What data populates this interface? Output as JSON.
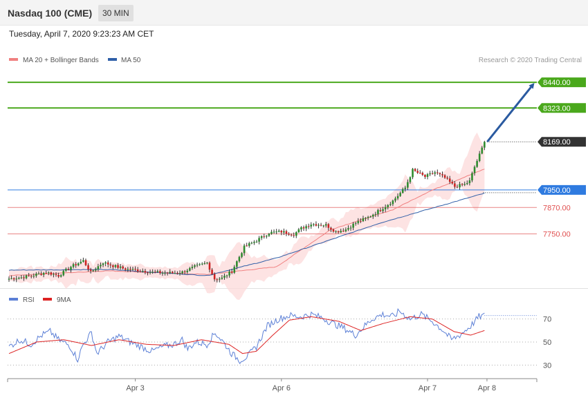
{
  "header": {
    "title": "Nasdaq 100 (CME)",
    "timeframe": "30 MIN",
    "datetime": "Tuesday, April 7, 2020 9:23:23 AM CET"
  },
  "legend": {
    "ma20_label": "MA 20 + Bollinger Bands",
    "ma20_color": "#f08080",
    "ma50_label": "MA 50",
    "ma50_color": "#2f5fa8",
    "copyright": "Research © 2020 Trading Central"
  },
  "rsi_legend": {
    "rsi_label": "RSI",
    "rsi_color": "#5b7fd6",
    "ma9_label": "9MA",
    "ma9_color": "#dd2222"
  },
  "chart_data": [
    {
      "type": "candlestick",
      "x_labels": [
        "Apr 3",
        "Apr 6",
        "Apr 7",
        "Apr 8"
      ],
      "ylim": [
        7525,
        8500
      ],
      "levels": [
        {
          "value": 8440.0,
          "label": "8440.00",
          "role": "target",
          "color": "#4aa81c"
        },
        {
          "value": 8323.0,
          "label": "8323.00",
          "role": "target",
          "color": "#4aa81c"
        },
        {
          "value": 8169.0,
          "label": "8169.00",
          "role": "last price",
          "color": "#333333"
        },
        {
          "value": 7950.0,
          "label": "7950.00",
          "role": "pivot",
          "color": "#2f7be0"
        },
        {
          "value": 7870.0,
          "label": "7870.00",
          "role": "support",
          "color": "#e05050"
        },
        {
          "value": 7750.0,
          "label": "7750.00",
          "role": "support",
          "color": "#e05050"
        }
      ],
      "arrow": {
        "from": 8169,
        "to": 8440,
        "direction": "up",
        "color": "#2a5aa0"
      },
      "anchors": [
        [
          0,
          7546
        ],
        [
          5,
          7552
        ],
        [
          10,
          7562
        ],
        [
          15,
          7575
        ],
        [
          20,
          7560
        ],
        [
          25,
          7600
        ],
        [
          30,
          7628
        ],
        [
          33,
          7575
        ],
        [
          38,
          7620
        ],
        [
          42,
          7605
        ],
        [
          47,
          7590
        ],
        [
          52,
          7585
        ],
        [
          58,
          7575
        ],
        [
          66,
          7572
        ],
        [
          70,
          7576
        ],
        [
          75,
          7600
        ],
        [
          80,
          7618
        ],
        [
          83,
          7545
        ],
        [
          86,
          7548
        ],
        [
          90,
          7580
        ],
        [
          95,
          7690
        ],
        [
          100,
          7720
        ],
        [
          105,
          7755
        ],
        [
          110,
          7760
        ],
        [
          115,
          7748
        ],
        [
          118,
          7775
        ],
        [
          122,
          7795
        ],
        [
          128,
          7790
        ],
        [
          132,
          7760
        ],
        [
          136,
          7770
        ],
        [
          140,
          7800
        ],
        [
          145,
          7825
        ],
        [
          150,
          7860
        ],
        [
          155,
          7900
        ],
        [
          160,
          7960
        ],
        [
          163,
          8040
        ],
        [
          168,
          8010
        ],
        [
          172,
          8030
        ],
        [
          176,
          8005
        ],
        [
          180,
          7965
        ],
        [
          184,
          7975
        ],
        [
          186,
          7990
        ],
        [
          188,
          8055
        ],
        [
          190,
          8110
        ],
        [
          192,
          8169
        ]
      ],
      "ma50_anchors": [
        [
          0,
          7585
        ],
        [
          40,
          7588
        ],
        [
          80,
          7560
        ],
        [
          108,
          7640
        ],
        [
          150,
          7800
        ],
        [
          192,
          7935
        ]
      ],
      "ma20_anchors": [
        [
          0,
          7560
        ],
        [
          40,
          7582
        ],
        [
          80,
          7565
        ],
        [
          108,
          7600
        ],
        [
          130,
          7770
        ],
        [
          155,
          7860
        ],
        [
          170,
          7945
        ],
        [
          192,
          8045
        ]
      ]
    },
    {
      "type": "line",
      "name": "RSI",
      "ylim": [
        20,
        80
      ],
      "y_ticks": [
        70,
        50,
        30
      ],
      "rsi_anchors": [
        [
          0,
          46
        ],
        [
          4,
          52
        ],
        [
          8,
          48
        ],
        [
          12,
          56
        ],
        [
          15,
          59
        ],
        [
          18,
          52
        ],
        [
          22,
          47
        ],
        [
          25,
          35
        ],
        [
          27,
          48
        ],
        [
          30,
          58
        ],
        [
          32,
          40
        ],
        [
          36,
          50
        ],
        [
          40,
          55
        ],
        [
          44,
          50
        ],
        [
          48,
          46
        ],
        [
          52,
          42
        ],
        [
          56,
          46
        ],
        [
          60,
          48
        ],
        [
          63,
          52
        ],
        [
          65,
          44
        ],
        [
          68,
          50
        ],
        [
          72,
          48
        ],
        [
          75,
          58
        ],
        [
          78,
          50
        ],
        [
          81,
          40
        ],
        [
          84,
          34
        ],
        [
          87,
          38
        ],
        [
          90,
          46
        ],
        [
          94,
          64
        ],
        [
          98,
          70
        ],
        [
          102,
          73
        ],
        [
          106,
          72
        ],
        [
          110,
          74
        ],
        [
          114,
          71
        ],
        [
          118,
          66
        ],
        [
          122,
          62
        ],
        [
          126,
          56
        ],
        [
          129,
          63
        ],
        [
          132,
          70
        ],
        [
          136,
          74
        ],
        [
          140,
          72
        ],
        [
          142,
          77
        ],
        [
          146,
          70
        ],
        [
          150,
          74
        ],
        [
          154,
          68
        ],
        [
          158,
          60
        ],
        [
          161,
          52
        ],
        [
          164,
          56
        ],
        [
          168,
          64
        ],
        [
          171,
          72
        ],
        [
          173,
          73
        ]
      ],
      "ma9_anchors": [
        [
          0,
          40
        ],
        [
          10,
          50
        ],
        [
          20,
          52
        ],
        [
          30,
          47
        ],
        [
          40,
          52
        ],
        [
          50,
          48
        ],
        [
          60,
          47
        ],
        [
          70,
          52
        ],
        [
          80,
          48
        ],
        [
          85,
          40
        ],
        [
          90,
          42
        ],
        [
          96,
          56
        ],
        [
          102,
          69
        ],
        [
          110,
          72
        ],
        [
          120,
          68
        ],
        [
          128,
          60
        ],
        [
          136,
          66
        ],
        [
          146,
          72
        ],
        [
          154,
          70
        ],
        [
          162,
          59
        ],
        [
          168,
          56
        ],
        [
          173,
          60
        ]
      ]
    }
  ]
}
